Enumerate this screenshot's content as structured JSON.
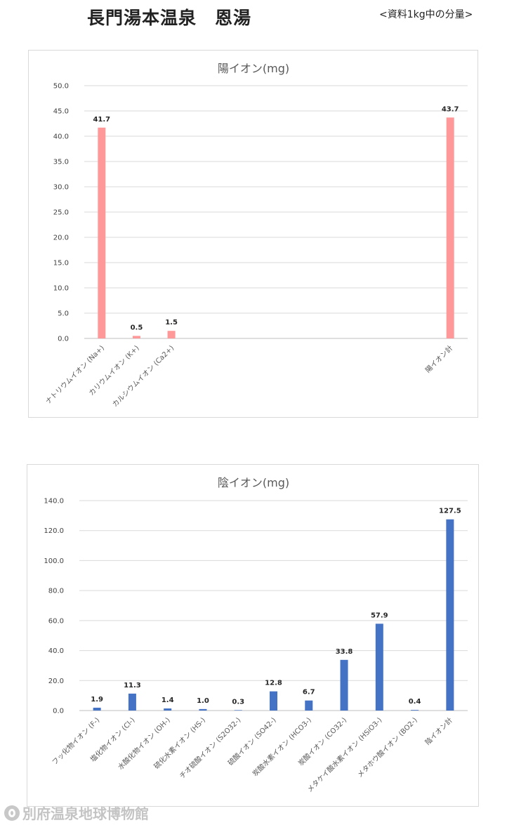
{
  "header": {
    "title": "長門湯本温泉　恩湯",
    "subtitle": "<資料1kg中の分量>"
  },
  "footer": {
    "logo_text": "別府温泉地球博物館"
  },
  "chart_data": [
    {
      "type": "bar",
      "title": "陽イオン(mg)",
      "categories": [
        "ナトリウムイオン (Na+)",
        "カリウムイオン (K+)",
        "カルシウムイオン (Ca2+)",
        "",
        "",
        "",
        "",
        "",
        "",
        "",
        "陽イオン計"
      ],
      "values": [
        41.7,
        0.5,
        1.5,
        null,
        null,
        null,
        null,
        null,
        null,
        null,
        43.7
      ],
      "data_labels": [
        "41.7",
        "0.5",
        "1.5",
        "",
        "",
        "",
        "",
        "",
        "",
        "",
        "43.7"
      ],
      "ylim": [
        0,
        50
      ],
      "ytick_step": 5,
      "ytick_labels": [
        "0.0",
        "5.0",
        "10.0",
        "15.0",
        "20.0",
        "25.0",
        "30.0",
        "35.0",
        "40.0",
        "45.0",
        "50.0"
      ],
      "grid": true,
      "legend": "none",
      "color": "#ff9999"
    },
    {
      "type": "bar",
      "title": "陰イオン(mg)",
      "categories": [
        "フッ化物イオン (F-)",
        "塩化物イオン (Cl-)",
        "水酸化物イオン (OH-)",
        "硫化水素イオン (HS-)",
        "チオ硫酸イオン (S2O32-)",
        "硫酸イオン (SO42-)",
        "炭酸水素イオン (HCO3-)",
        "炭酸イオン (CO32-)",
        "メタケイ酸水素イオン (HSiO3-)",
        "メタホウ酸イオン (BO2-)",
        "陰イオン計"
      ],
      "values": [
        1.9,
        11.3,
        1.4,
        1.0,
        0.3,
        12.8,
        6.7,
        33.8,
        57.9,
        0.4,
        127.5
      ],
      "data_labels": [
        "1.9",
        "11.3",
        "1.4",
        "1.0",
        "0.3",
        "12.8",
        "6.7",
        "33.8",
        "57.9",
        "0.4",
        "127.5"
      ],
      "ylim": [
        0,
        140
      ],
      "ytick_step": 20,
      "ytick_labels": [
        "0.0",
        "20.0",
        "40.0",
        "60.0",
        "80.0",
        "100.0",
        "120.0",
        "140.0"
      ],
      "grid": true,
      "legend": "none",
      "color": "#4472c4"
    }
  ]
}
